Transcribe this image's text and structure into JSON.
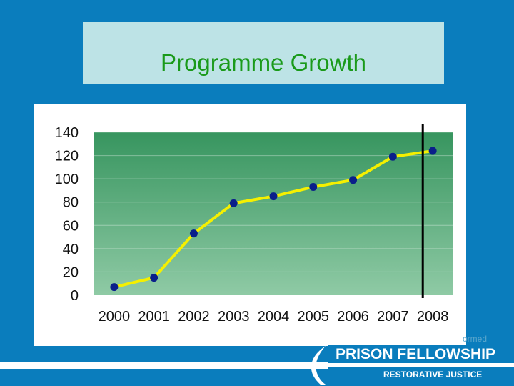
{
  "slide": {
    "title": "Programme Growth",
    "background_color": "#0a7dbd",
    "title_box_color": "#bde3e6",
    "title_color": "#1a9a1a"
  },
  "chart_data": {
    "type": "line",
    "categories": [
      "2000",
      "2001",
      "2002",
      "2003",
      "2004",
      "2005",
      "2006",
      "2007",
      "2008"
    ],
    "values": [
      7,
      15,
      53,
      79,
      85,
      93,
      99,
      119,
      124
    ],
    "ylim": [
      0,
      140
    ],
    "yticks": [
      "0",
      "20",
      "40",
      "60",
      "80",
      "100",
      "120",
      "140"
    ],
    "grid": true,
    "legend": "none",
    "line_color": "#f5f000",
    "marker_color": "#0a1f8a",
    "plot_gradient_top": "#37955f",
    "plot_gradient_bottom": "#8fcaa5",
    "marker_line": {
      "between": [
        "2007",
        "2008"
      ],
      "color": "#000000"
    }
  },
  "footer": {
    "faded_text": "ormed",
    "org_name": "PRISON FELLOWSHIP",
    "tagline": "RESTORATIVE JUSTICE",
    "logo": "swoosh-icon"
  }
}
